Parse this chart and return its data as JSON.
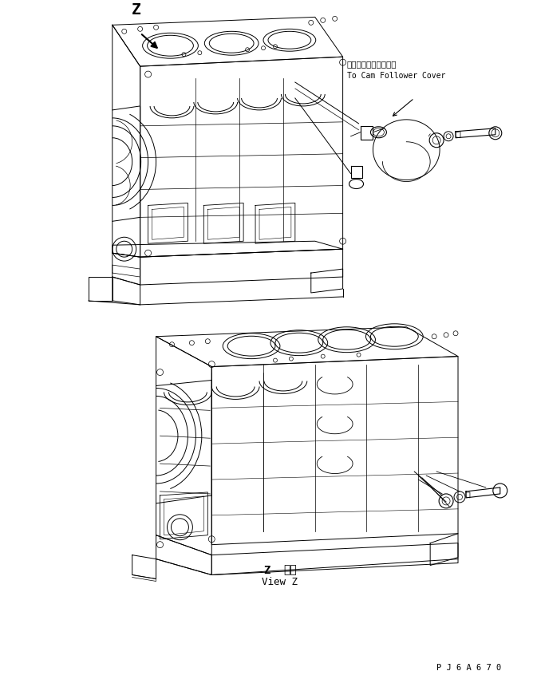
{
  "bg_color": "#ffffff",
  "line_color": "#000000",
  "lw": 0.7,
  "figsize": [
    6.68,
    8.46
  ],
  "dpi": 100,
  "label_japanese": "カムフォロワカバーへ",
  "label_english": "To Cam Follower Cover",
  "label_z": "Z",
  "label_view_z_jp": "Z　視",
  "label_view_z_en": "View Z",
  "label_code": "P J 6 A 6 7 0"
}
